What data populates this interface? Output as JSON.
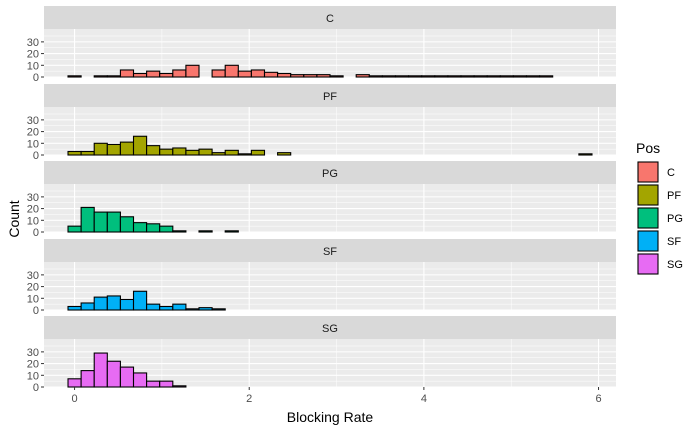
{
  "chart_data": {
    "type": "histogram",
    "facets": [
      "C",
      "PF",
      "PG",
      "SF",
      "SG"
    ],
    "x_axis": {
      "label": "Blocking Rate",
      "ticks": [
        0,
        2,
        4,
        6
      ],
      "range": [
        -0.35,
        6.2
      ]
    },
    "y_axis": {
      "label": "Count",
      "ticks": [
        0,
        10,
        20,
        30
      ],
      "range": [
        0,
        41
      ]
    },
    "bin_width": 0.15,
    "first_bin_center": 0,
    "grid": true,
    "legend": {
      "title": "Pos",
      "position": "right",
      "items": [
        {
          "label": "C",
          "color": "#F8766D"
        },
        {
          "label": "PF",
          "color": "#A3A500"
        },
        {
          "label": "PG",
          "color": "#00BF7D"
        },
        {
          "label": "SF",
          "color": "#00B0F6"
        },
        {
          "label": "SG",
          "color": "#E76BF3"
        }
      ]
    },
    "series": [
      {
        "name": "C",
        "color": "#F8766D",
        "counts": [
          1,
          0,
          1,
          1,
          6,
          3,
          5,
          3,
          6,
          10,
          0,
          6,
          10,
          5,
          6,
          4,
          3,
          2,
          2,
          2,
          1,
          0,
          2,
          1,
          1,
          1,
          1,
          1,
          1,
          1,
          1,
          1,
          1,
          1,
          1,
          1,
          1,
          0,
          0,
          0
        ]
      },
      {
        "name": "PF",
        "color": "#A3A500",
        "counts": [
          3,
          3,
          10,
          9,
          11,
          16,
          8,
          5,
          6,
          4,
          5,
          2,
          4,
          1,
          4,
          0,
          2,
          0,
          0,
          0,
          0,
          0,
          0,
          0,
          0,
          0,
          0,
          0,
          0,
          0,
          0,
          0,
          0,
          0,
          0,
          0,
          0,
          0,
          0,
          1
        ]
      },
      {
        "name": "PG",
        "color": "#00BF7D",
        "counts": [
          5,
          21,
          17,
          17,
          13,
          8,
          7,
          5,
          1,
          0,
          1,
          0,
          1,
          0,
          0,
          0,
          0,
          0,
          0,
          0,
          0,
          0,
          0,
          0,
          0,
          0,
          0,
          0,
          0,
          0,
          0,
          0,
          0,
          0,
          0,
          0,
          0,
          0,
          0,
          0
        ]
      },
      {
        "name": "SF",
        "color": "#00B0F6",
        "counts": [
          3,
          6,
          11,
          12,
          9,
          16,
          5,
          3,
          5,
          1,
          2,
          1,
          0,
          0,
          0,
          0,
          0,
          0,
          0,
          0,
          0,
          0,
          0,
          0,
          0,
          0,
          0,
          0,
          0,
          0,
          0,
          0,
          0,
          0,
          0,
          0,
          0,
          0,
          0,
          0
        ]
      },
      {
        "name": "SG",
        "color": "#E76BF3",
        "counts": [
          7,
          14,
          29,
          22,
          17,
          12,
          5,
          5,
          1,
          0,
          0,
          0,
          0,
          0,
          0,
          0,
          0,
          0,
          0,
          0,
          0,
          0,
          0,
          0,
          0,
          0,
          0,
          0,
          0,
          0,
          0,
          0,
          0,
          0,
          0,
          0,
          0,
          0,
          0,
          0
        ]
      }
    ]
  }
}
